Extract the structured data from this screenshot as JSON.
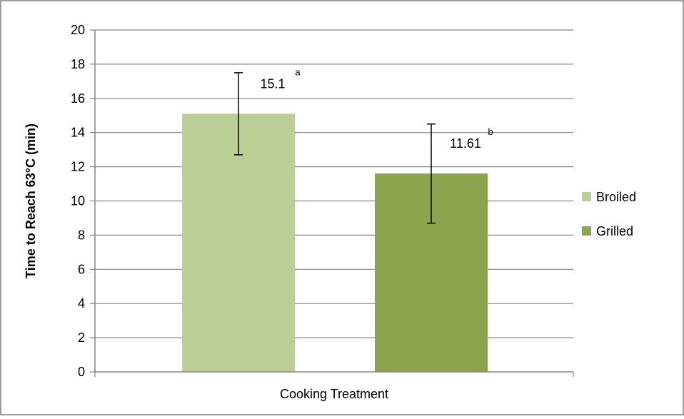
{
  "chart_data": {
    "type": "bar",
    "title": "",
    "xlabel": "Cooking Treatment",
    "ylabel": "Time to Reach 63°C  (min)",
    "ylim": [
      0,
      20
    ],
    "y_ticks": [
      0,
      2,
      4,
      6,
      8,
      10,
      12,
      14,
      16,
      18,
      20
    ],
    "grid": true,
    "legend_position": "right",
    "series": [
      {
        "name": "Broiled",
        "value": 15.1,
        "label": "15.1",
        "significance": "a",
        "error_low": 12.7,
        "error_high": 17.5,
        "color": "#bacf96"
      },
      {
        "name": "Grilled",
        "value": 11.61,
        "label": "11.61",
        "significance": "b",
        "error_low": 8.7,
        "error_high": 14.5,
        "color": "#8aa54e"
      }
    ]
  }
}
